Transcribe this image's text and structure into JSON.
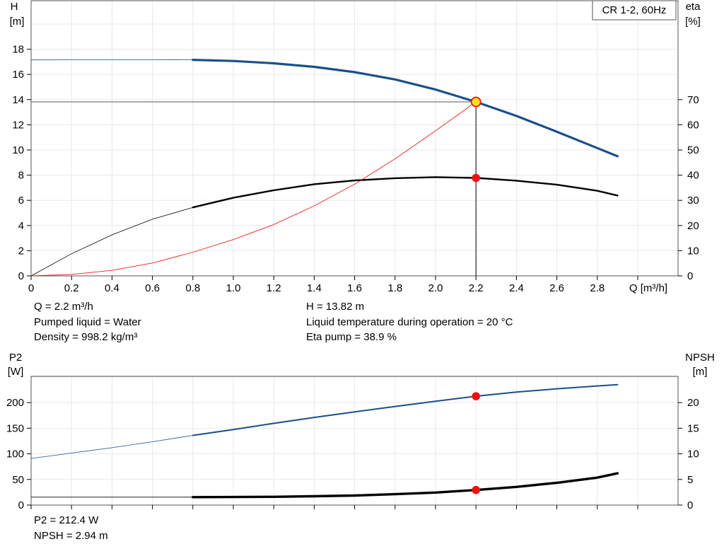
{
  "legend_box": "CR 1-2, 60Hz",
  "colors": {
    "head": "#1b4f8a",
    "eta": "#000000",
    "eta_total": "#e8201e",
    "power": "#1b4f8a",
    "npsh": "#000000",
    "marker": "#ee1111",
    "marker_duty": "#ffe21a",
    "grid": "#e8e8e8"
  },
  "info_top": {
    "left": [
      "Q = 2.2 m³/h",
      "Pumped liquid = Water",
      "Density = 998.2 kg/m³"
    ],
    "right": [
      "H = 13.82 m",
      "Liquid temperature during operation = 20 °C",
      "Eta pump = 38.9 %"
    ]
  },
  "info_bottom": {
    "left": [
      "P2 = 212.4 W",
      "NPSH = 2.94 m"
    ]
  },
  "chart_data": [
    {
      "type": "line",
      "xlabel": "Q [m³/h]",
      "ylabel_left": [
        "H",
        "[m]"
      ],
      "ylabel_right": [
        "eta",
        "[%]"
      ],
      "xlim": [
        0,
        3.0
      ],
      "ylim_left": [
        0,
        20
      ],
      "ylim_right": [
        0,
        100
      ],
      "x_ticks": [
        "0",
        "0.2",
        "0.4",
        "0.6",
        "0.8",
        "1.0",
        "1.2",
        "1.4",
        "1.6",
        "1.8",
        "2.0",
        "2.2",
        "2.4",
        "2.6",
        "2.8"
      ],
      "y_ticks_left": [
        "0",
        "2",
        "4",
        "6",
        "8",
        "10",
        "12",
        "14",
        "16",
        "18"
      ],
      "y_ticks_right": [
        "0",
        "10",
        "20",
        "30",
        "40",
        "50",
        "60",
        "70"
      ],
      "grid": true,
      "duty_point": {
        "x": 2.2,
        "y": 13.82
      },
      "series": [
        {
          "id": "head",
          "axis": "left",
          "color_key": "head",
          "x": [
            0.0,
            0.2,
            0.4,
            0.6,
            0.8,
            1.0,
            1.2,
            1.4,
            1.6,
            1.8,
            2.0,
            2.2,
            2.4,
            2.6,
            2.8,
            2.9
          ],
          "y": [
            17.15,
            17.16,
            17.17,
            17.17,
            17.16,
            17.07,
            16.88,
            16.6,
            16.18,
            15.6,
            14.8,
            13.82,
            12.7,
            11.45,
            10.15,
            9.5
          ],
          "thin_until": 0.8
        },
        {
          "id": "eta_pump",
          "axis": "right",
          "color_key": "eta",
          "x": [
            0.0,
            0.2,
            0.4,
            0.6,
            0.8,
            1.0,
            1.2,
            1.4,
            1.6,
            1.8,
            2.0,
            2.2,
            2.4,
            2.6,
            2.8,
            2.9
          ],
          "y": [
            0.0,
            8.8,
            16.3,
            22.5,
            27.2,
            31.0,
            34.0,
            36.4,
            37.9,
            38.8,
            39.2,
            38.9,
            37.8,
            36.2,
            33.8,
            31.9
          ],
          "thin_until": 0.8
        },
        {
          "id": "eta_total",
          "axis": "right",
          "color_key": "eta_total",
          "x": [
            0.0,
            0.2,
            0.4,
            0.6,
            0.8,
            1.0,
            1.2,
            1.4,
            1.6,
            1.8,
            2.0,
            2.2
          ],
          "y": [
            0.0,
            0.6,
            2.2,
            5.1,
            9.4,
            14.4,
            20.4,
            27.8,
            36.4,
            46.5,
            57.6,
            69.1
          ],
          "thin_until": 2.2
        }
      ],
      "markers": [
        {
          "series": "head",
          "x": 2.2,
          "y": 13.82,
          "duty": true
        },
        {
          "series": "eta_pump",
          "x": 2.2,
          "y": 38.9,
          "duty": false
        }
      ]
    },
    {
      "type": "line",
      "ylabel_left": [
        "P2",
        "[W]"
      ],
      "ylabel_right": [
        "NPSH",
        "[m]"
      ],
      "xlim": [
        0,
        3.0
      ],
      "ylim_left": [
        0,
        250
      ],
      "ylim_right": [
        0,
        25
      ],
      "y_ticks_left": [
        "0",
        "50",
        "100",
        "150",
        "200"
      ],
      "y_ticks_right": [
        "0",
        "5",
        "10",
        "15",
        "20"
      ],
      "grid": true,
      "series": [
        {
          "id": "p2",
          "axis": "left",
          "color_key": "power",
          "x": [
            0.0,
            0.2,
            0.4,
            0.6,
            0.8,
            1.0,
            1.2,
            1.4,
            1.6,
            1.8,
            2.0,
            2.2,
            2.4,
            2.6,
            2.8,
            2.9
          ],
          "y": [
            91.0,
            101.5,
            112.0,
            123.5,
            136.0,
            147.5,
            159.5,
            171.0,
            182.0,
            192.5,
            202.5,
            212.4,
            220.5,
            227.0,
            232.5,
            235.0
          ],
          "thin_until": 0.8
        },
        {
          "id": "npsh",
          "axis": "right",
          "color_key": "npsh",
          "x": [
            0.0,
            0.2,
            0.4,
            0.6,
            0.8,
            1.0,
            1.2,
            1.4,
            1.6,
            1.8,
            2.0,
            2.2,
            2.4,
            2.6,
            2.8,
            2.9
          ],
          "y": [
            1.55,
            1.55,
            1.55,
            1.55,
            1.55,
            1.58,
            1.62,
            1.72,
            1.86,
            2.12,
            2.45,
            2.94,
            3.55,
            4.35,
            5.35,
            6.2
          ],
          "thin_until": 0.8
        }
      ],
      "markers": [
        {
          "series": "p2",
          "x": 2.2,
          "y": 212.4,
          "duty": false
        },
        {
          "series": "npsh",
          "x": 2.2,
          "y": 2.94,
          "duty": false
        }
      ]
    }
  ]
}
